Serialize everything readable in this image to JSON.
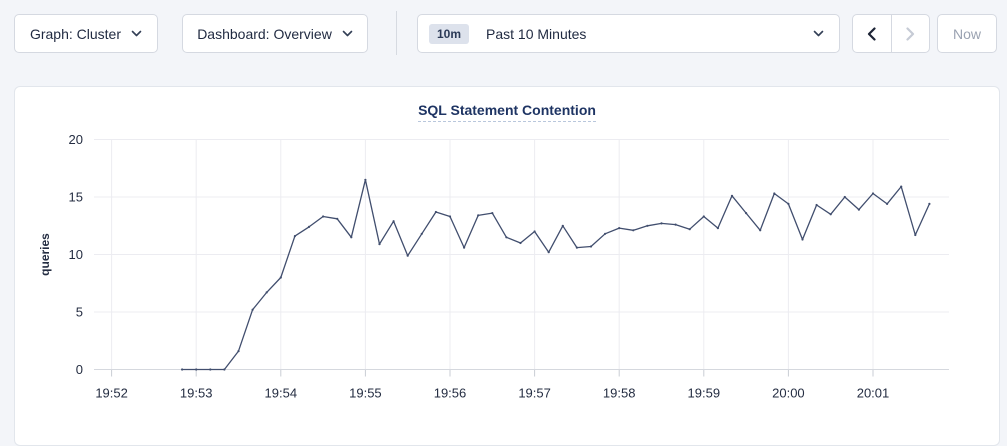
{
  "toolbar": {
    "graph_select": {
      "label": "Graph: Cluster",
      "icon": "chevron-down-icon"
    },
    "dashboard_select": {
      "label": "Dashboard: Overview",
      "icon": "chevron-down-icon"
    },
    "time_picker": {
      "badge": "10m",
      "label": "Past 10 Minutes",
      "icon": "chevron-down-icon"
    },
    "prev_button": {
      "icon": "chevron-left-icon",
      "enabled": true
    },
    "next_button": {
      "icon": "chevron-right-icon",
      "enabled": false
    },
    "now_label": "Now"
  },
  "chart_data": {
    "type": "line",
    "title": "SQL Statement Contention",
    "xlabel": "",
    "ylabel": "queries",
    "ylim": [
      0,
      20
    ],
    "yticks": [
      0,
      5,
      10,
      15,
      20
    ],
    "x_tick_labels": [
      "19:52",
      "19:53",
      "19:54",
      "19:55",
      "19:56",
      "19:57",
      "19:58",
      "19:59",
      "20:00",
      "20:01"
    ],
    "grid": true,
    "legend": "none",
    "line_color": "#414e6e",
    "series": [
      {
        "name": "SQL Statement Contention",
        "unit": "queries",
        "start_time": "19:52:50",
        "interval_seconds": 10,
        "values": [
          0,
          0,
          0,
          0,
          1.6,
          5.2,
          6.7,
          8,
          11.6,
          12.4,
          13.3,
          13.1,
          11.5,
          16.5,
          10.9,
          12.9,
          9.9,
          11.8,
          13.7,
          13.3,
          10.6,
          13.4,
          13.6,
          11.5,
          11,
          12,
          10.2,
          12.5,
          10.6,
          10.7,
          11.8,
          12.3,
          12.1,
          12.5,
          12.7,
          12.6,
          12.2,
          13.3,
          12.3,
          15.1,
          13.6,
          12.1,
          15.3,
          14.4,
          11.3,
          14.3,
          13.5,
          15,
          13.9,
          15.3,
          14.4,
          15.9,
          11.7,
          14.4
        ]
      }
    ]
  },
  "colors": {
    "page_background": "#f3f5f9",
    "card_background": "#ffffff",
    "card_border": "#e2e6ec",
    "control_border": "#d5d9e1",
    "text_primary": "#1f2940",
    "text_disabled": "#9aa2b1",
    "title": "#1e3463",
    "badge_background": "#dde2ec",
    "gridline": "#ececf1",
    "axis_line": "#d5d8de",
    "series_line": "#414e6e"
  }
}
